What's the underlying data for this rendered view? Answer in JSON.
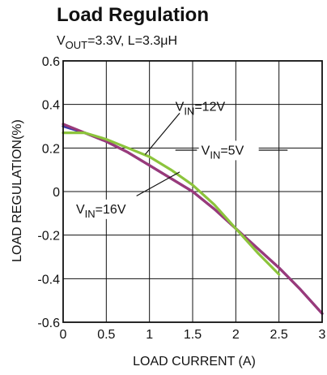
{
  "chart_data": {
    "type": "line",
    "title": "Load Regulation",
    "subtitle": {
      "prefix": "V",
      "sub": "OUT",
      "suffix": "=3.3V, L=3.3μH"
    },
    "xlabel": "LOAD CURRENT (A)",
    "ylabel": "LOAD REGULATION(%)",
    "xlim": [
      0,
      3
    ],
    "ylim": [
      -0.6,
      0.6
    ],
    "xticks": [
      0,
      0.5,
      1,
      1.5,
      2,
      2.5,
      3
    ],
    "xtick_labels": [
      "0",
      "0.5",
      "1",
      "1.5",
      "2",
      "2.5",
      "3"
    ],
    "yticks": [
      0.6,
      0.4,
      0.2,
      0,
      -0.2,
      -0.4,
      -0.6
    ],
    "ytick_labels": [
      "0.6",
      "0.4",
      "0.2",
      "0",
      "-0.2",
      "-0.4",
      "-0.6"
    ],
    "grid": true,
    "series": [
      {
        "name": "VIN=5V",
        "label_prefix": "V",
        "label_sub": "IN",
        "label_suffix": "=5V",
        "color": "#3a3aa8",
        "x": [
          0,
          0.25,
          0.5,
          0.75,
          1,
          1.25,
          1.5,
          1.75,
          2,
          2.25,
          2.5,
          2.75,
          3
        ],
        "y": [
          0.3,
          0.27,
          0.23,
          0.18,
          0.12,
          0.06,
          0.0,
          -0.08,
          -0.17,
          -0.26,
          -0.35,
          -0.45,
          -0.56
        ]
      },
      {
        "name": "VIN=16V",
        "label_prefix": "V",
        "label_sub": "IN",
        "label_suffix": "=16V",
        "color": "#9a3a7a",
        "x": [
          0,
          0.25,
          0.5,
          0.75,
          1,
          1.25,
          1.5,
          1.75,
          2,
          2.25,
          2.5,
          2.75,
          3
        ],
        "y": [
          0.31,
          0.27,
          0.23,
          0.18,
          0.12,
          0.06,
          0.0,
          -0.08,
          -0.17,
          -0.26,
          -0.35,
          -0.45,
          -0.56
        ]
      },
      {
        "name": "VIN=12V",
        "label_prefix": "V",
        "label_sub": "IN",
        "label_suffix": "=12V",
        "color": "#8cc43c",
        "x": [
          0,
          0.25,
          0.5,
          0.75,
          1,
          1.25,
          1.5,
          1.75,
          2,
          2.25,
          2.5
        ],
        "y": [
          0.27,
          0.27,
          0.24,
          0.2,
          0.16,
          0.1,
          0.03,
          -0.06,
          -0.17,
          -0.28,
          -0.38
        ]
      }
    ]
  }
}
